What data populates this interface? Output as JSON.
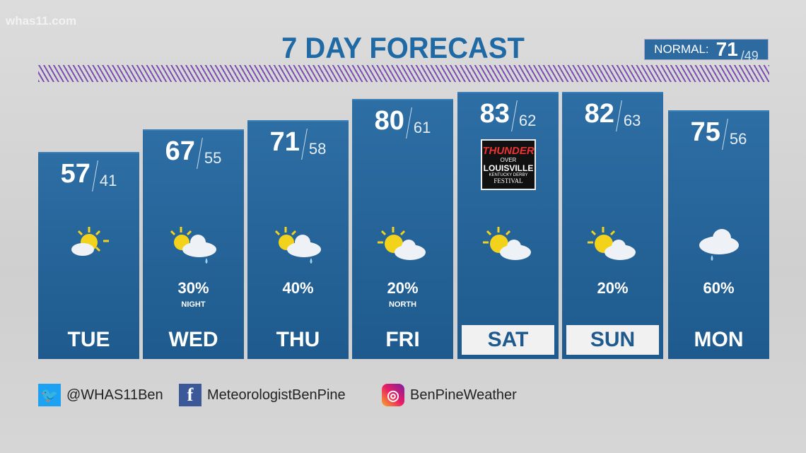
{
  "station_logo": "whas11.com",
  "title": "7 DAY FORECAST",
  "normal": {
    "label": "NORMAL:",
    "high": "71",
    "low": "/49"
  },
  "days": [
    {
      "day": "TUE",
      "high": "57",
      "low": "41",
      "icon": "sunny-partly-cloudy",
      "pop": "",
      "note": "",
      "highlight": false
    },
    {
      "day": "WED",
      "high": "67",
      "low": "55",
      "icon": "partly-cloudy-shower",
      "pop": "30%",
      "note": "NIGHT",
      "highlight": false
    },
    {
      "day": "THU",
      "high": "71",
      "low": "58",
      "icon": "partly-cloudy-shower",
      "pop": "40%",
      "note": "",
      "highlight": false
    },
    {
      "day": "FRI",
      "high": "80",
      "low": "61",
      "icon": "partly-cloudy",
      "pop": "20%",
      "note": "NORTH",
      "highlight": false
    },
    {
      "day": "SAT",
      "high": "83",
      "low": "62",
      "icon": "partly-cloudy",
      "pop": "",
      "note": "",
      "highlight": true,
      "event_logo": "THUNDER OVER LOUISVILLE KENTUCKY DERBY FESTIVAL"
    },
    {
      "day": "SUN",
      "high": "82",
      "low": "63",
      "icon": "partly-cloudy",
      "pop": "20%",
      "note": "",
      "highlight": true
    },
    {
      "day": "MON",
      "high": "75",
      "low": "56",
      "icon": "cloud-shower",
      "pop": "60%",
      "note": "",
      "highlight": false
    }
  ],
  "social": {
    "twitter": "@WHAS11Ben",
    "facebook": "MeteorologistBenPine",
    "instagram": "BenPineWeather"
  },
  "colors": {
    "title": "#1f6aa5",
    "panel": "#2d6ea4",
    "stripe": "#7a4fb0"
  }
}
